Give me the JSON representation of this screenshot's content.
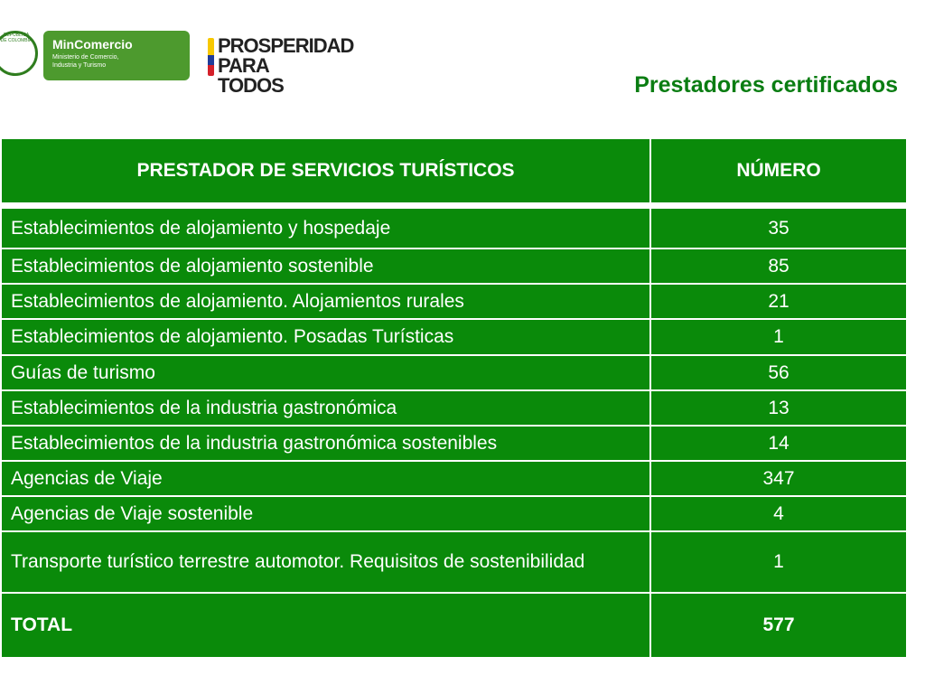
{
  "header": {
    "seal_text": "REPÚBLICA DE COLOMBIA",
    "brand": "MinComercio",
    "brand_subtitle": "Ministerio de Comercio, Industria y Turismo",
    "slogan_line1": "PROSPERIDAD",
    "slogan_line2": "PARA TODOS"
  },
  "title": "Prestadores certificados",
  "table": {
    "columns": [
      "PRESTADOR DE SERVICIOS TURÍSTICOS",
      "NÚMERO"
    ],
    "rows": [
      [
        "Establecimientos de alojamiento y hospedaje",
        35
      ],
      [
        "Establecimientos de alojamiento sostenible",
        85
      ],
      [
        "Establecimientos de alojamiento. Alojamientos rurales",
        21
      ],
      [
        "Establecimientos de alojamiento. Posadas Turísticas",
        1
      ],
      [
        "Guías de turismo",
        56
      ],
      [
        "Establecimientos de la industria gastronómica",
        13
      ],
      [
        "Establecimientos de la industria gastronómica sostenibles",
        14
      ],
      [
        "Agencias de Viaje",
        347
      ],
      [
        "Agencias de Viaje sostenible",
        4
      ],
      [
        "Transporte turístico terrestre automotor. Requisitos de sostenibilidad",
        1
      ]
    ],
    "total": [
      "TOTAL",
      577
    ]
  }
}
